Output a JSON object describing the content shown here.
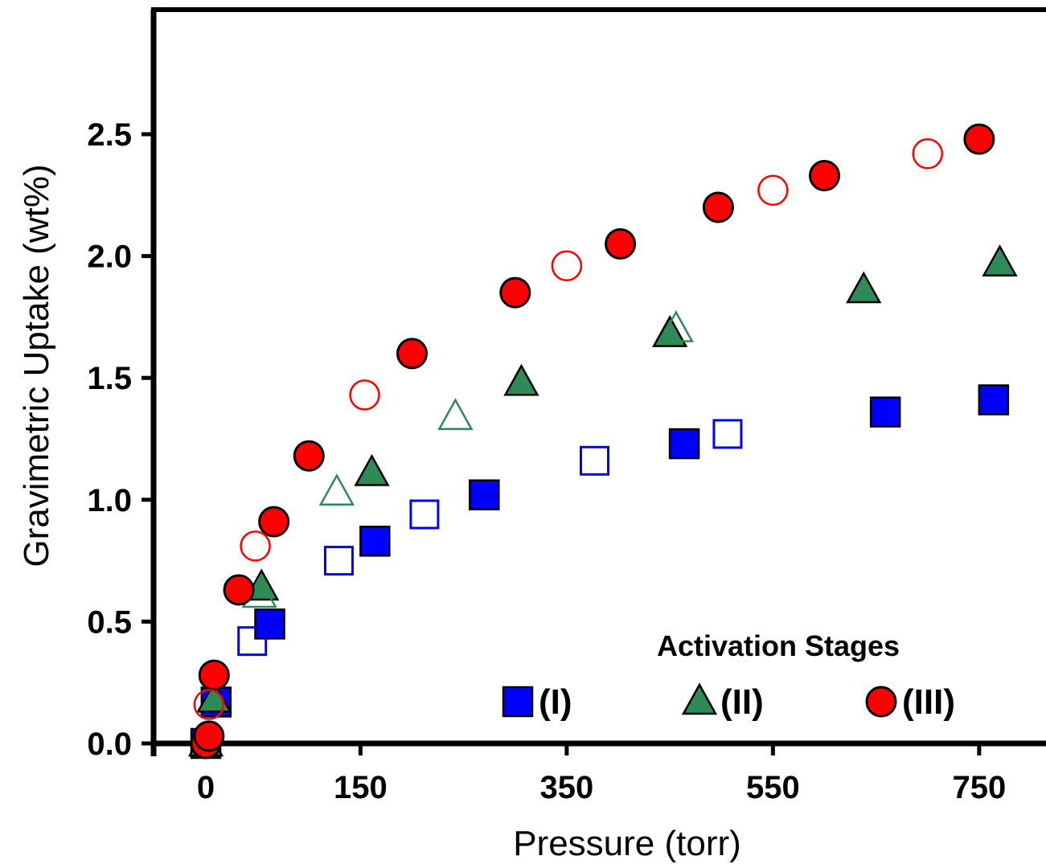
{
  "chart_data": {
    "type": "scatter",
    "title": "",
    "xlabel": "Pressure (torr)",
    "ylabel": "Gravimetric Uptake (wt%)",
    "xlim": [
      -50,
      800
    ],
    "ylim": [
      0,
      3.0
    ],
    "xticks": [
      0,
      150,
      350,
      550,
      750
    ],
    "xtick_labels": [
      "0",
      "150",
      "350",
      "550",
      "750"
    ],
    "yticks": [
      0,
      0.5,
      1.0,
      1.5,
      2.0,
      2.5
    ],
    "ytick_labels": [
      "0.0",
      "0.5",
      "1.0",
      "1.5",
      "2.0",
      "2.5"
    ],
    "grid": false,
    "legend": {
      "title": "Activation Stages",
      "placement": "bottom-right",
      "entries": [
        {
          "label": "(I)",
          "marker": "square",
          "color": "#0000ff"
        },
        {
          "label": "(II)",
          "marker": "triangle",
          "color": "#2e8b57"
        },
        {
          "label": "(III)",
          "marker": "circle",
          "color": "#ff0000"
        }
      ]
    },
    "series": [
      {
        "name": "(I)",
        "marker": "square",
        "filled": true,
        "color": "#0000ff",
        "x": [
          0,
          10,
          62,
          164,
          270,
          464,
          659,
          764
        ],
        "y": [
          0.0,
          0.17,
          0.49,
          0.83,
          1.02,
          1.23,
          1.36,
          1.41
        ]
      },
      {
        "name": "(I)",
        "marker": "square",
        "filled": false,
        "color": "#0000ff",
        "x": [
          45,
          129,
          212,
          377,
          506
        ],
        "y": [
          0.42,
          0.75,
          0.94,
          1.16,
          1.27
        ]
      },
      {
        "name": "(II)",
        "marker": "triangle",
        "filled": true,
        "color": "#2e8b57",
        "x": [
          0,
          8,
          54,
          161,
          306,
          450,
          638,
          770
        ],
        "y": [
          0.0,
          0.18,
          0.64,
          1.11,
          1.48,
          1.68,
          1.86,
          1.97
        ]
      },
      {
        "name": "(II)",
        "marker": "triangle",
        "filled": false,
        "color": "#2e8b57",
        "x": [
          52,
          127,
          242,
          456
        ],
        "y": [
          0.61,
          1.03,
          1.34,
          1.7
        ]
      },
      {
        "name": "(III)",
        "marker": "circle",
        "filled": true,
        "color": "#ff0000",
        "x": [
          0,
          3,
          8,
          32,
          66,
          100,
          200,
          300,
          402,
          497,
          600,
          750
        ],
        "y": [
          0.0,
          0.03,
          0.28,
          0.63,
          0.91,
          1.18,
          1.6,
          1.85,
          2.05,
          2.2,
          2.33,
          2.48
        ]
      },
      {
        "name": "(III)",
        "marker": "circle",
        "filled": false,
        "color": "#ff0000",
        "x": [
          3,
          48,
          154,
          350,
          550,
          700
        ],
        "y": [
          0.16,
          0.81,
          1.43,
          1.96,
          2.27,
          2.42
        ]
      }
    ]
  }
}
